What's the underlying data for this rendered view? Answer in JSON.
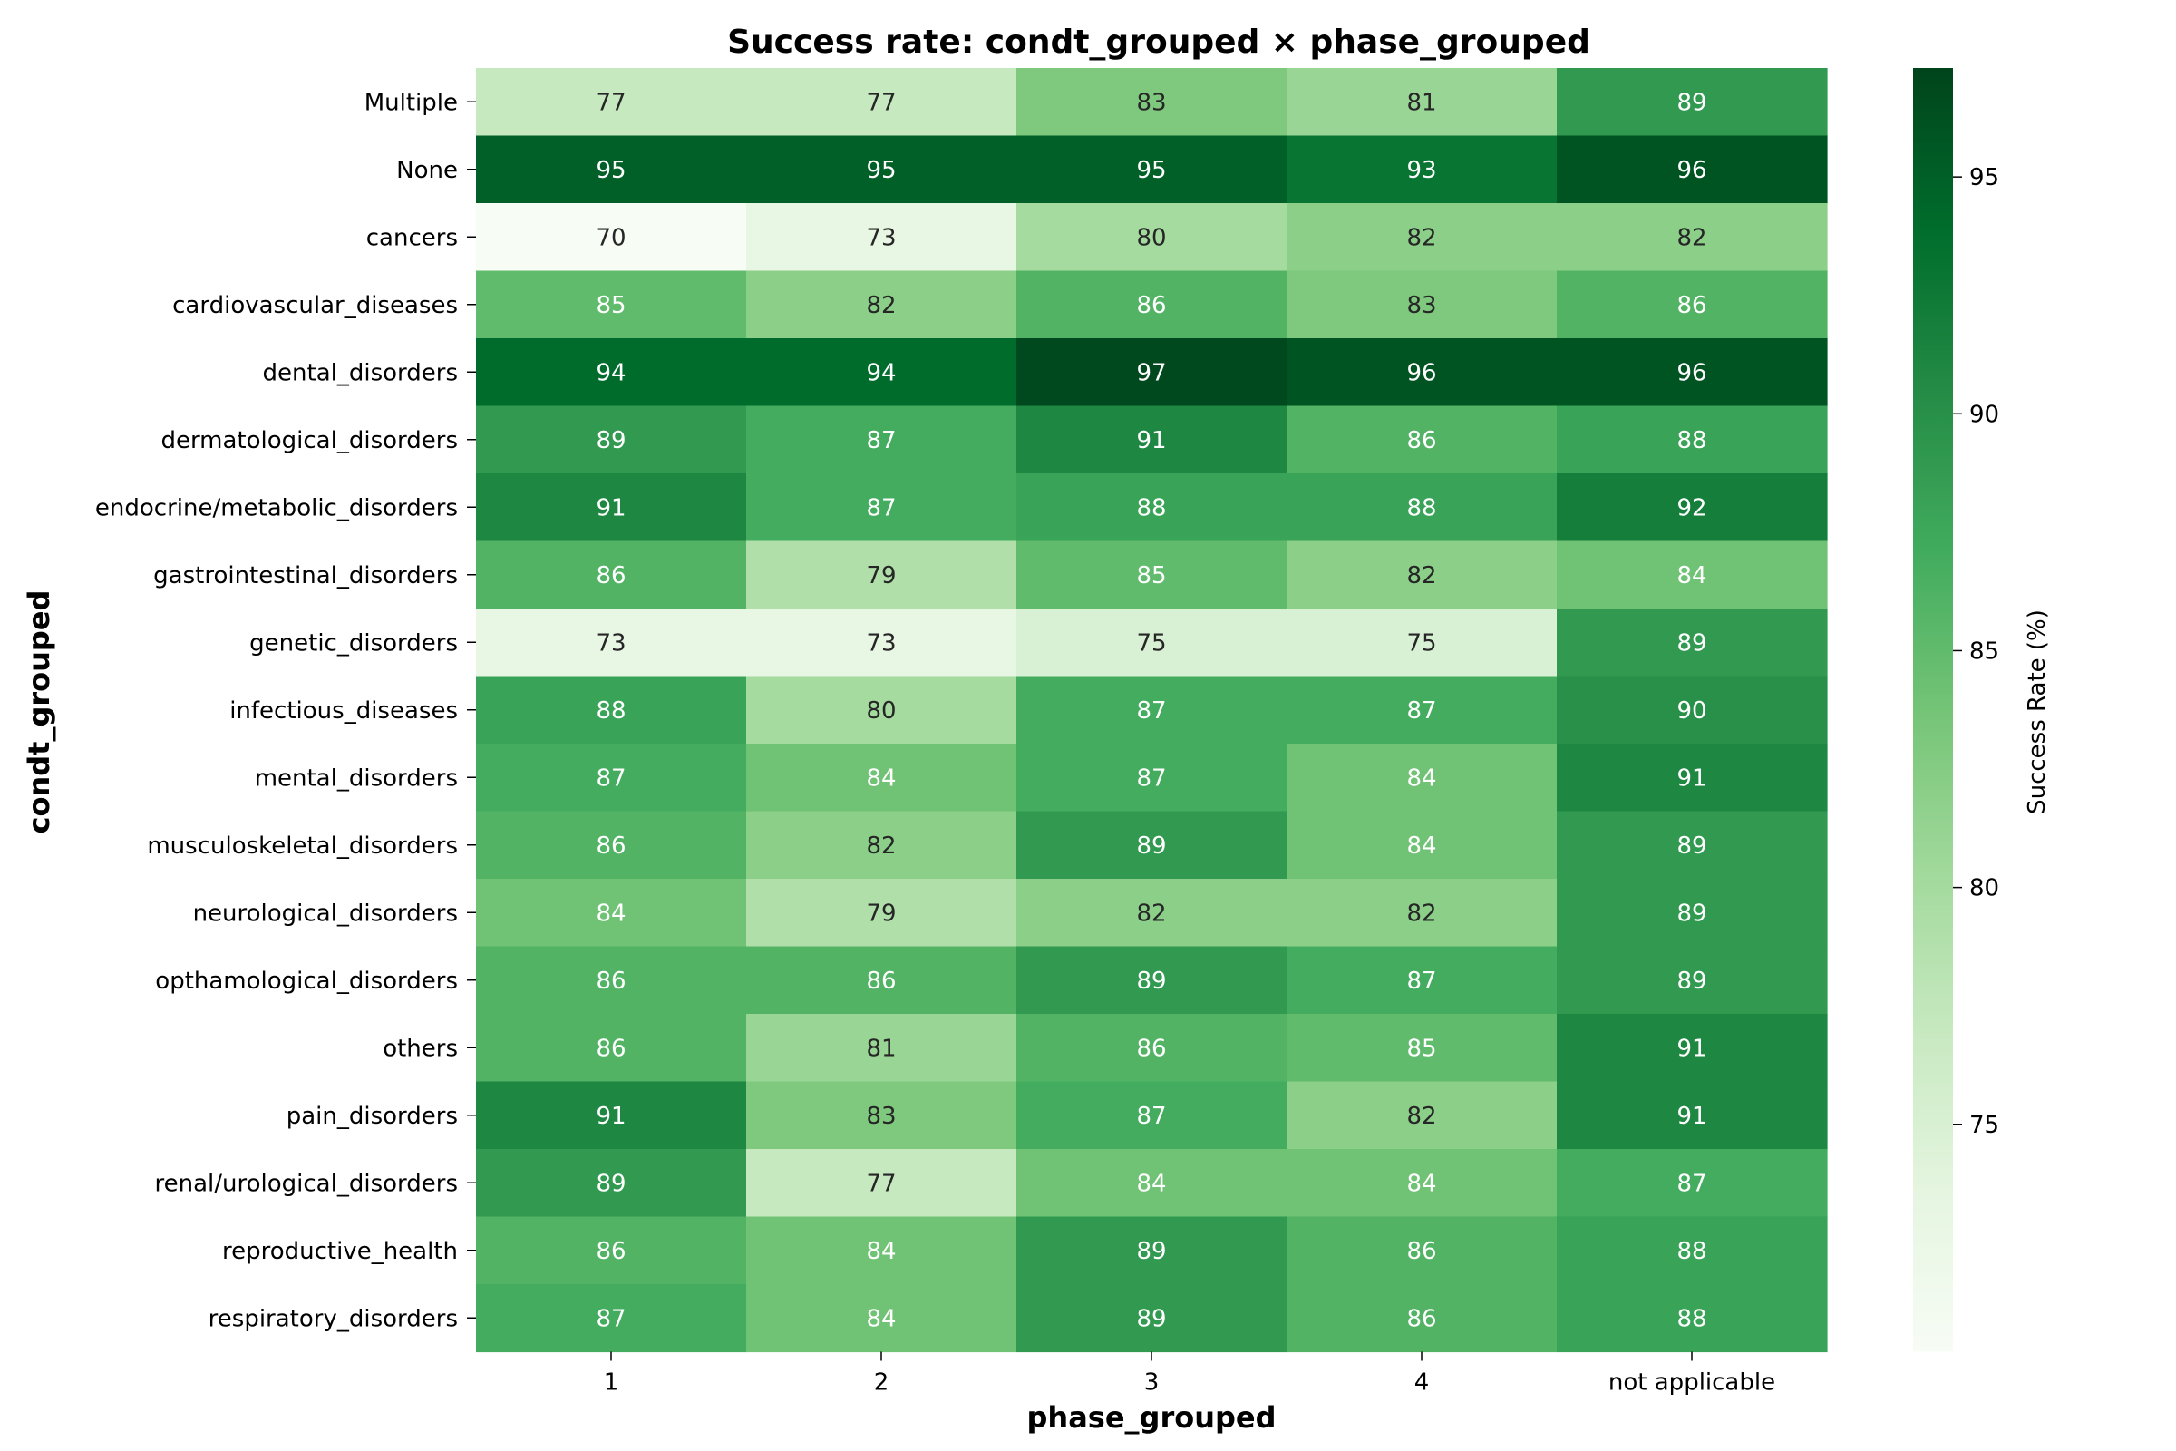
{
  "chart_data": {
    "type": "heatmap",
    "title": "Success rate: condt_grouped × phase_grouped",
    "xlabel": "phase_grouped",
    "ylabel": "condt_grouped",
    "x_categories": [
      "1",
      "2",
      "3",
      "4",
      "not applicable"
    ],
    "y_categories": [
      "Multiple",
      "None",
      "cancers",
      "cardiovascular_diseases",
      "dental_disorders",
      "dermatological_disorders",
      "endocrine/metabolic_disorders",
      "gastrointestinal_disorders",
      "genetic_disorders",
      "infectious_diseases",
      "mental_disorders",
      "musculoskeletal_disorders",
      "neurological_disorders",
      "opthamological_disorders",
      "others",
      "pain_disorders",
      "renal/urological_disorders",
      "reproductive_health",
      "respiratory_disorders"
    ],
    "values": [
      [
        77,
        77,
        83,
        81,
        89
      ],
      [
        95,
        95,
        95,
        93,
        96
      ],
      [
        70,
        73,
        80,
        82,
        82
      ],
      [
        85,
        82,
        86,
        83,
        86
      ],
      [
        94,
        94,
        97,
        96,
        96
      ],
      [
        89,
        87,
        91,
        86,
        88
      ],
      [
        91,
        87,
        88,
        88,
        92
      ],
      [
        86,
        79,
        85,
        82,
        84
      ],
      [
        73,
        73,
        75,
        75,
        89
      ],
      [
        88,
        80,
        87,
        87,
        90
      ],
      [
        87,
        84,
        87,
        84,
        91
      ],
      [
        86,
        82,
        89,
        84,
        89
      ],
      [
        84,
        79,
        82,
        82,
        89
      ],
      [
        86,
        86,
        89,
        87,
        89
      ],
      [
        86,
        81,
        86,
        85,
        91
      ],
      [
        91,
        83,
        87,
        82,
        91
      ],
      [
        89,
        77,
        84,
        84,
        87
      ],
      [
        86,
        84,
        89,
        86,
        88
      ],
      [
        87,
        84,
        89,
        86,
        88
      ]
    ],
    "colorbar": {
      "label": "Success Rate (%)",
      "min": 70.2,
      "max": 97.3,
      "ticks": [
        75,
        80,
        85,
        90,
        95
      ],
      "colormap": "Greens"
    },
    "grid": false
  }
}
